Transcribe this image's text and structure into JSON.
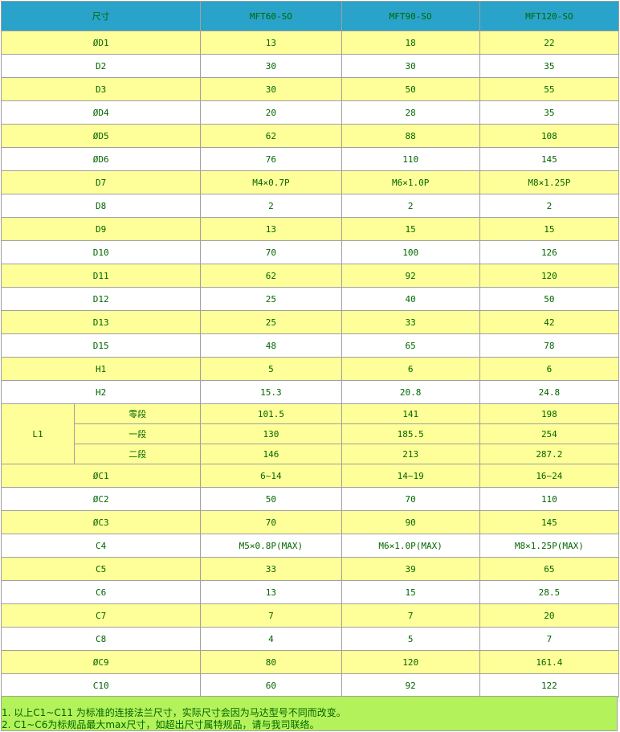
{
  "header": [
    "尺寸",
    "MFT60-SO",
    "MFT90-SO",
    "MFT120-SO"
  ],
  "rows_before": [
    {
      "label": "ØD1",
      "values": [
        "13",
        "18",
        "22"
      ]
    },
    {
      "label": "D2",
      "values": [
        "30",
        "30",
        "35"
      ]
    },
    {
      "label": "D3",
      "values": [
        "30",
        "50",
        "55"
      ]
    },
    {
      "label": "ØD4",
      "values": [
        "20",
        "28",
        "35"
      ]
    },
    {
      "label": "ØD5",
      "values": [
        "62",
        "88",
        "108"
      ]
    },
    {
      "label": "ØD6",
      "values": [
        "76",
        "110",
        "145"
      ]
    },
    {
      "label": "D7",
      "values": [
        "M4×0.7P",
        "M6×1.0P",
        "M8×1.25P"
      ]
    },
    {
      "label": "D8",
      "values": [
        "2",
        "2",
        "2"
      ]
    },
    {
      "label": "D9",
      "values": [
        "13",
        "15",
        "15"
      ]
    },
    {
      "label": "D10",
      "values": [
        "70",
        "100",
        "126"
      ]
    },
    {
      "label": "D11",
      "values": [
        "62",
        "92",
        "120"
      ]
    },
    {
      "label": "D12",
      "values": [
        "25",
        "40",
        "50"
      ]
    },
    {
      "label": "D13",
      "values": [
        "25",
        "33",
        "42"
      ]
    },
    {
      "label": "D15",
      "values": [
        "48",
        "65",
        "78"
      ]
    },
    {
      "label": "H1",
      "values": [
        "5",
        "6",
        "6"
      ]
    },
    {
      "label": "H2",
      "values": [
        "15.3",
        "20.8",
        "24.8"
      ]
    }
  ],
  "l1": {
    "label": "L1",
    "rows": [
      {
        "label": "零段",
        "values": [
          "101.5",
          "141",
          "198"
        ]
      },
      {
        "label": "一段",
        "values": [
          "130",
          "185.5",
          "254"
        ]
      },
      {
        "label": "二段",
        "values": [
          "146",
          "213",
          "287.2"
        ]
      }
    ]
  },
  "rows_after": [
    {
      "label": "ØC1",
      "values": [
        "6~14",
        "14~19",
        "16~24"
      ]
    },
    {
      "label": "ØC2",
      "values": [
        "50",
        "70",
        "110"
      ]
    },
    {
      "label": "ØC3",
      "values": [
        "70",
        "90",
        "145"
      ]
    },
    {
      "label": "C4",
      "values": [
        "M5×0.8P(MAX)",
        "M6×1.0P(MAX)",
        "M8×1.25P(MAX)"
      ]
    },
    {
      "label": "C5",
      "values": [
        "33",
        "39",
        "65"
      ]
    },
    {
      "label": "C6",
      "values": [
        "13",
        "15",
        "28.5"
      ]
    },
    {
      "label": "C7",
      "values": [
        "7",
        "7",
        "20"
      ]
    },
    {
      "label": "C8",
      "values": [
        "4",
        "5",
        "7"
      ]
    },
    {
      "label": "ØC9",
      "values": [
        "80",
        "120",
        "161.4"
      ]
    },
    {
      "label": "C10",
      "values": [
        "60",
        "92",
        "122"
      ]
    }
  ],
  "notes": [
    "1. 以上C1~C11 为标准的连接法兰尺寸，实际尺寸会因为马达型号不同而改变。",
    "2. C1~C6为标规品最大max尺寸，如超出尺寸属特规品，请与我司联络。"
  ],
  "colors": {
    "header": "#29a3c9",
    "row_alt": "#ffff99",
    "text": "#006600",
    "notes_bg": "#b3f25a"
  }
}
